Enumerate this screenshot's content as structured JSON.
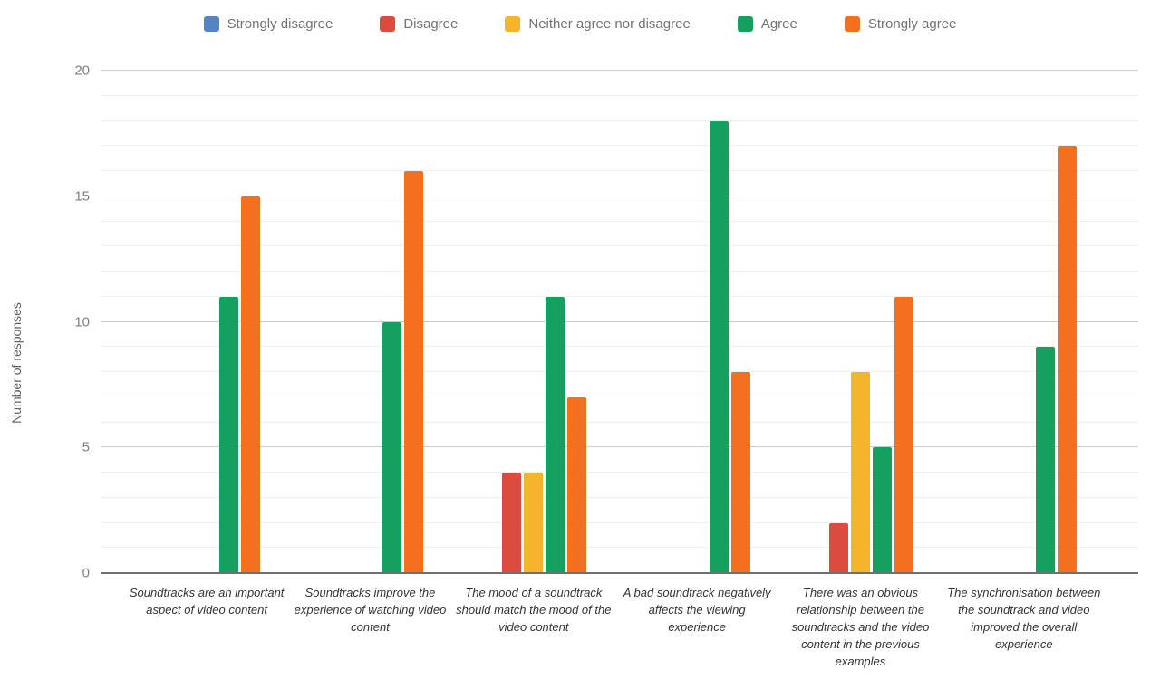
{
  "chart_data": {
    "type": "bar",
    "title": "",
    "xlabel": "",
    "ylabel": "Number of responses",
    "ylim": [
      0,
      20
    ],
    "yticks": [
      0,
      5,
      10,
      15,
      20
    ],
    "minor_grid_step": 1,
    "major_grid_step": 5,
    "grid": "horizontal",
    "legend_position": "top",
    "categories": [
      "Soundtracks are an important aspect of video content",
      "Soundtracks improve the experience of watching video content",
      "The mood of a soundtrack should match the mood of the video content",
      "A bad soundtrack negatively affects the viewing experience",
      "There was an obvious relationship between the soundtracks and the video content in the previous examples",
      "The synchronisation between the soundtrack and video improved the overall experience"
    ],
    "series": [
      {
        "name": "Strongly disagree",
        "color": "#5584C6",
        "values": [
          0,
          0,
          0,
          0,
          0,
          0
        ]
      },
      {
        "name": "Disagree",
        "color": "#DB4B3E",
        "values": [
          0,
          0,
          4,
          0,
          2,
          0
        ]
      },
      {
        "name": "Neither agree nor disagree",
        "color": "#F5B42C",
        "values": [
          0,
          0,
          4,
          0,
          8,
          0
        ]
      },
      {
        "name": "Agree",
        "color": "#15A05F",
        "values": [
          11,
          10,
          11,
          18,
          5,
          9
        ]
      },
      {
        "name": "Strongly agree",
        "color": "#F3701E",
        "values": [
          15,
          16,
          7,
          8,
          11,
          17
        ]
      }
    ]
  }
}
